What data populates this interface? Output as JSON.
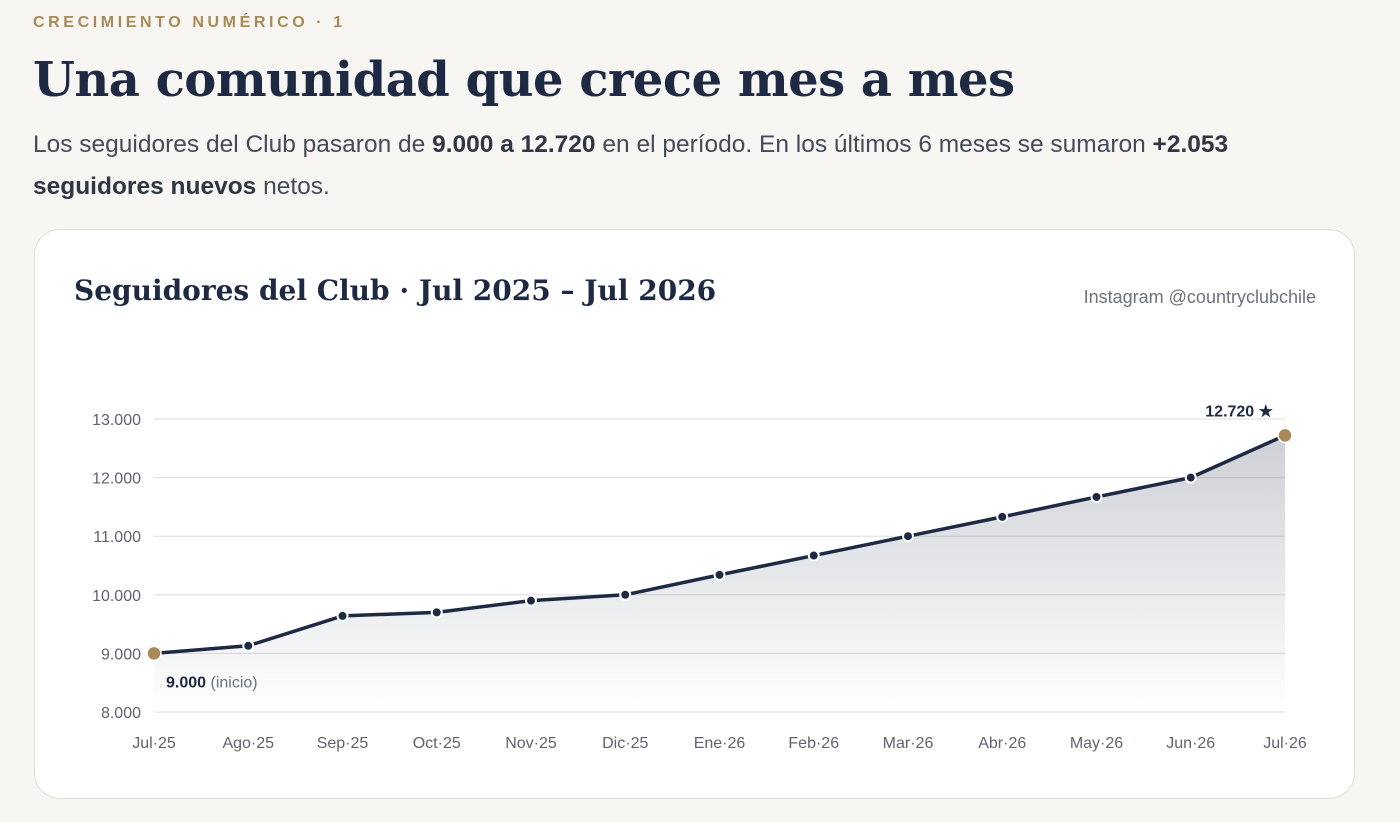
{
  "header": {
    "eyebrow": "CRECIMIENTO NUMÉRICO · 1",
    "title": "Una comunidad que crece mes a mes",
    "lead": {
      "p1": "Los seguidores del Club pasaron de ",
      "b1": "9.000 a 12.720",
      "p2": " en el período. En los últimos 6 meses se sumaron ",
      "b2": "+2.053 seguidores nuevos",
      "p3": " netos."
    }
  },
  "card": {
    "title": "Seguidores del Club · Jul 2025 – Jul 2026",
    "source": "Instagram @countryclubchile"
  },
  "chart_data": {
    "type": "line",
    "title": "Seguidores del Club · Jul 2025 – Jul 2026",
    "xlabel": "",
    "ylabel": "",
    "categories": [
      "Jul·25",
      "Ago·25",
      "Sep·25",
      "Oct·25",
      "Nov·25",
      "Dic·25",
      "Ene·26",
      "Feb·26",
      "Mar·26",
      "Abr·26",
      "May·26",
      "Jun·26",
      "Jul·26"
    ],
    "series": [
      {
        "values": [
          9000,
          9130,
          9640,
          9700,
          9900,
          10000,
          10340,
          10670,
          11000,
          11330,
          11670,
          12000,
          12720
        ]
      }
    ],
    "ylim": [
      8000,
      13000
    ],
    "yticks": [
      8000,
      9000,
      10000,
      11000,
      12000,
      13000
    ],
    "ytick_labels": [
      "8.000",
      "9.000",
      "10.000",
      "11.000",
      "12.000",
      "13.000"
    ],
    "grid": true,
    "area_fill": true,
    "annotations": {
      "start_value": "9.000",
      "start_note": "(inicio)",
      "end_label": "12.720 ★"
    },
    "colors": {
      "line": "#1e2a44",
      "highlight_point": "#a88a56",
      "grid": "#dddddd"
    }
  }
}
